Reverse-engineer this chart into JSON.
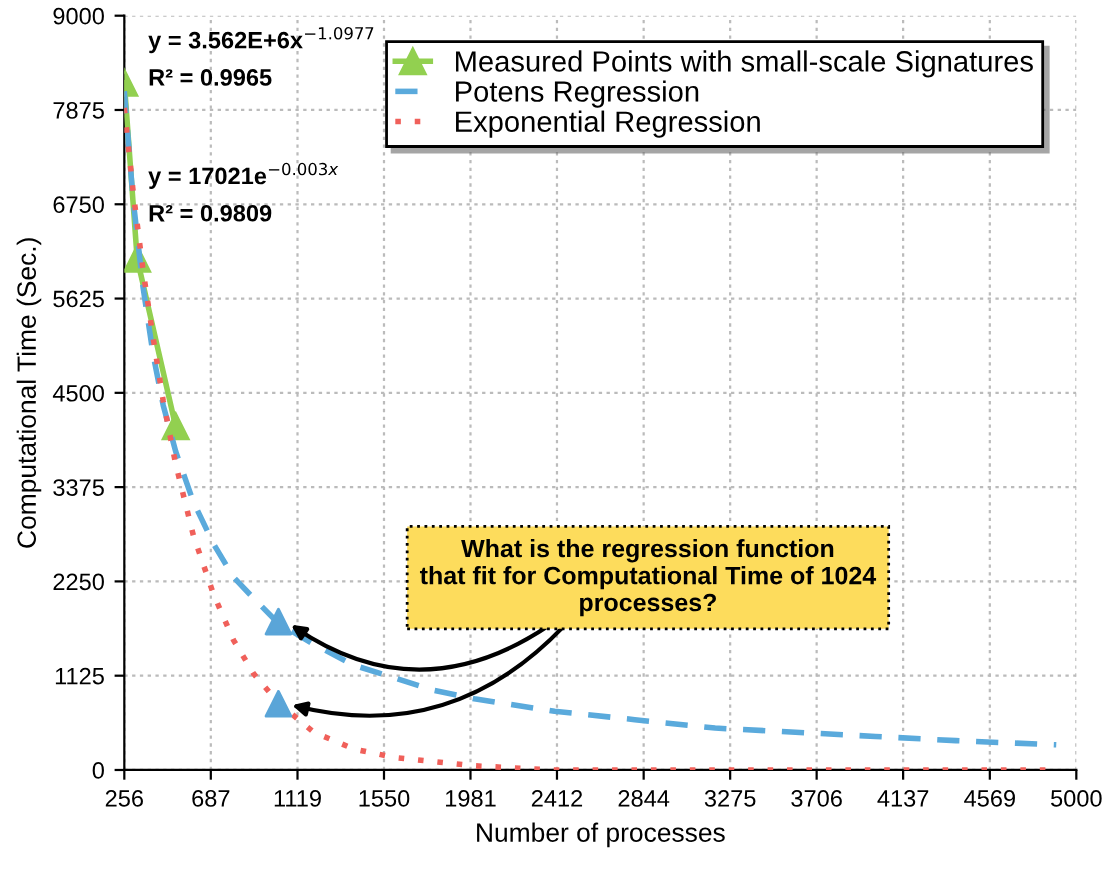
{
  "chart_data": {
    "type": "line",
    "xlabel": "Number of processes",
    "ylabel": "Computational Time (Sec.)",
    "xlim": [
      256,
      5000
    ],
    "xticks": [
      256,
      687,
      1119,
      1550,
      1981,
      2412,
      2844,
      3275,
      3706,
      4137,
      4569,
      5000
    ],
    "ylim": [
      0,
      9000
    ],
    "yticks": [
      0,
      1125,
      2250,
      3375,
      4500,
      5625,
      6750,
      7875,
      9000
    ],
    "grid": true,
    "legend": "top right",
    "series": [
      {
        "name": "Measured Points with small-scale Signatures",
        "color": "#92d050",
        "marker": "triangle",
        "line_style": "solid",
        "x": [
          256,
          320,
          512
        ],
        "values": [
          8200,
          6100,
          4100
        ]
      },
      {
        "name": "Potens Regression",
        "color": "#5aaadc",
        "marker": "none",
        "line_style": "dashed",
        "x": [
          256,
          300,
          350,
          400,
          450,
          512,
          600,
          700,
          800,
          900,
          1024,
          1200,
          1400,
          1600,
          1800,
          2000,
          2400,
          2800,
          3200,
          3600,
          4000,
          4400,
          4900
        ],
        "values": [
          8100,
          6800,
          5750,
          4950,
          4350,
          3800,
          3200,
          2700,
          2300,
          2050,
          1750,
          1500,
          1250,
          1100,
          950,
          850,
          700,
          600,
          500,
          450,
          400,
          350,
          300
        ]
      },
      {
        "name": "Exponential Regression",
        "color": "#f0605a",
        "marker": "none",
        "line_style": "dotted",
        "x": [
          256,
          300,
          350,
          400,
          450,
          512,
          600,
          700,
          800,
          900,
          1024,
          1200,
          1400,
          1600,
          1800,
          2000,
          2400,
          2800,
          3200,
          3600,
          4000,
          4400,
          4900
        ],
        "values": [
          7900,
          6900,
          5950,
          5150,
          4400,
          3650,
          2800,
          2100,
          1550,
          1150,
          800,
          450,
          250,
          150,
          100,
          50,
          0,
          0,
          0,
          0,
          0,
          0,
          0
        ]
      },
      {
        "type": "scatter",
        "color": "#5aa5d8",
        "marker": "triangle",
        "x": [
          1024,
          1024
        ],
        "values": [
          1770,
          790
        ]
      }
    ],
    "annotations": [
      "y = 3.562E+6x$^{−1.0977}$",
      "R² = 0.9965",
      "y = 17021e$^{−0.003x}$",
      "R² = 0.9809",
      {
        "text": "What is the regression function\nthat fit for Computational Time of 1024\nprocesses?",
        "x": 1024,
        "y": 1770
      }
    ]
  }
}
